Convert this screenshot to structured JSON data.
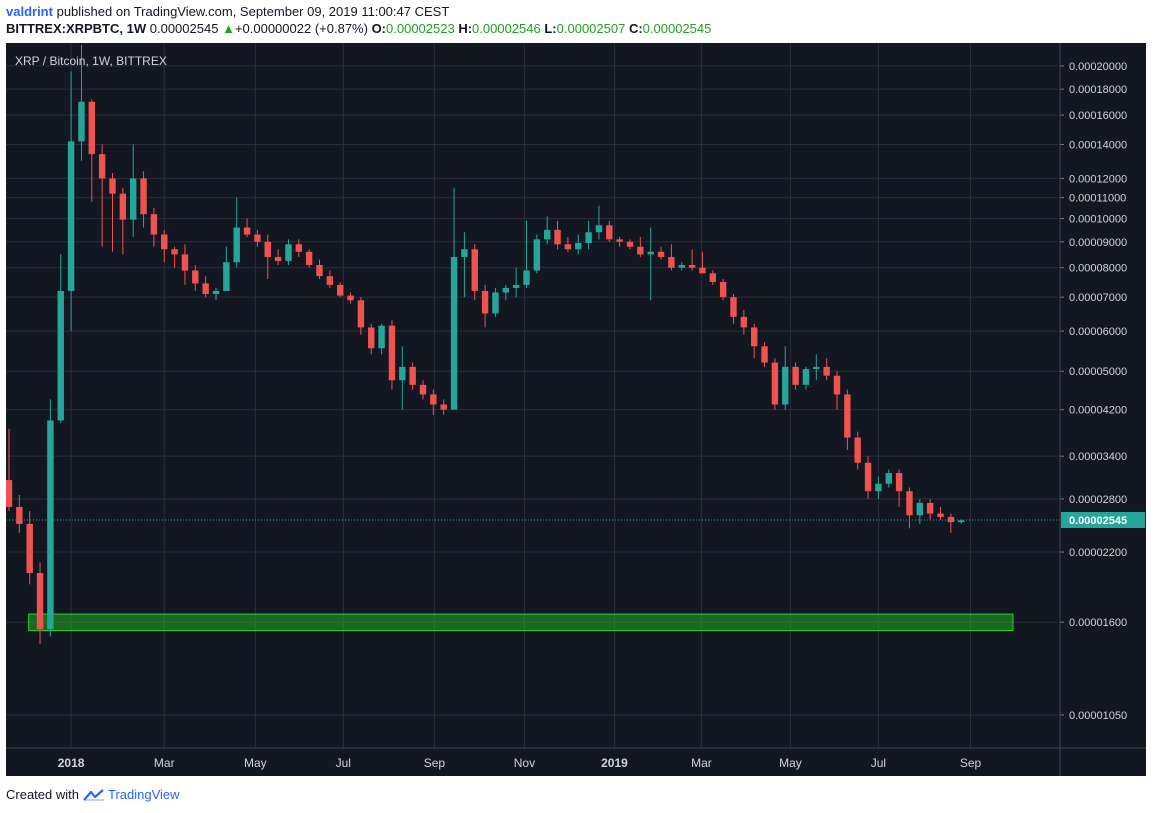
{
  "header": {
    "author": "valdrint",
    "published_text": "published on TradingView.com, September 09, 2019 11:00:47 CEST",
    "symbol": "BITTREX:XRPBTC, 1W",
    "last_price": "0.00002545",
    "change_arrow": "▲",
    "change_text": "+0.00000022 (+0.87%)",
    "o_label": "O:",
    "o_value": "0.00002523",
    "h_label": "H:",
    "h_value": "0.00002546",
    "l_label": "L:",
    "l_value": "0.00002507",
    "c_label": "C:",
    "c_value": "0.00002545"
  },
  "footer": {
    "created_with": "Created with",
    "brand": "TradingView"
  },
  "colors": {
    "background": "#131722",
    "bullish": "#26a69a",
    "bearish": "#ef5350",
    "grid": "#2a2e39",
    "support_zone": "#1fae1f"
  },
  "chart_data": {
    "type": "candlestick",
    "title": "XRP / Bitcoin, 1W, BITTREX",
    "y_scale": "log",
    "ylim": [
      9.5e-06,
      0.000215
    ],
    "y_ticks": [
      "0.00020000",
      "0.00018000",
      "0.00016000",
      "0.00014000",
      "0.00012000",
      "0.00011000",
      "0.00010000",
      "0.00009000",
      "0.00008000",
      "0.00007000",
      "0.00006000",
      "0.00005000",
      "0.00004200",
      "0.00003400",
      "0.00002800",
      "0.00002200",
      "0.00001600",
      "0.00001050"
    ],
    "x_labels": [
      {
        "label": "2018",
        "i": 6.0,
        "bold": true
      },
      {
        "label": "Mar",
        "i": 15.0
      },
      {
        "label": "May",
        "i": 23.8
      },
      {
        "label": "Jul",
        "i": 32.3
      },
      {
        "label": "Sep",
        "i": 41.1
      },
      {
        "label": "Nov",
        "i": 49.8
      },
      {
        "label": "2019",
        "i": 58.5,
        "bold": true
      },
      {
        "label": "Mar",
        "i": 66.9
      },
      {
        "label": "May",
        "i": 75.5
      },
      {
        "label": "Jul",
        "i": 84.0
      },
      {
        "label": "Sep",
        "i": 92.9
      }
    ],
    "vertical_grid_i": [
      6.0,
      15.0,
      23.8,
      32.3,
      41.1,
      49.8,
      58.5,
      66.9,
      75.5,
      84.0,
      92.9
    ],
    "current_price": "0.00002545",
    "support_zone": {
      "low": 1.54e-05,
      "high": 1.66e-05,
      "from_i": 1.9,
      "to_i": 97.0
    },
    "candles": [
      [
        3.05e-05,
        3.85e-05,
        2.65e-05,
        2.7e-05
      ],
      [
        2.7e-05,
        2.85e-05,
        2.4e-05,
        2.5e-05
      ],
      [
        2.5e-05,
        2.65e-05,
        1.9e-05,
        2e-05
      ],
      [
        2e-05,
        2.1e-05,
        1.45e-05,
        1.55e-05
      ],
      [
        1.55e-05,
        4.4e-05,
        1.5e-05,
        4e-05
      ],
      [
        4e-05,
        8.5e-05,
        3.95e-05,
        7.2e-05
      ],
      [
        7.2e-05,
        0.000195,
        6e-05,
        0.000142
      ],
      [
        0.000142,
        0.00022,
        0.00013,
        0.00017
      ],
      [
        0.00017,
        0.000172,
        0.000108,
        0.000134
      ],
      [
        0.000134,
        0.00014,
        8.8e-05,
        0.00012
      ],
      [
        0.00012,
        0.000123,
        8.6e-05,
        0.000112
      ],
      [
        0.000112,
        0.000115,
        8.5e-05,
        9.95e-05
      ],
      [
        9.95e-05,
        0.00014,
        9.2e-05,
        0.00012
      ],
      [
        0.00012,
        0.000124,
        9.6e-05,
        0.000102
      ],
      [
        0.000102,
        0.000105,
        8.8e-05,
        9.3e-05
      ],
      [
        9.3e-05,
        9.5e-05,
        8.2e-05,
        8.7e-05
      ],
      [
        8.7e-05,
        8.8e-05,
        8e-05,
        8.5e-05
      ],
      [
        8.5e-05,
        8.9e-05,
        7.4e-05,
        7.9e-05
      ],
      [
        7.9e-05,
        8.1e-05,
        7.2e-05,
        7.45e-05
      ],
      [
        7.45e-05,
        7.7e-05,
        7e-05,
        7.1e-05
      ],
      [
        7.1e-05,
        7.3e-05,
        6.9e-05,
        7.2e-05
      ],
      [
        7.2e-05,
        8.8e-05,
        7.2e-05,
        8.2e-05
      ],
      [
        8.2e-05,
        0.00011,
        8e-05,
        9.6e-05
      ],
      [
        9.6e-05,
        0.0001,
        9.2e-05,
        9.3e-05
      ],
      [
        9.3e-05,
        9.5e-05,
        8.8e-05,
        9e-05
      ],
      [
        9e-05,
        9.3e-05,
        7.6e-05,
        8.4e-05
      ],
      [
        8.4e-05,
        8.7e-05,
        8.1e-05,
        8.25e-05
      ],
      [
        8.25e-05,
        9.1e-05,
        8.1e-05,
        8.9e-05
      ],
      [
        8.9e-05,
        9.1e-05,
        8.4e-05,
        8.6e-05
      ],
      [
        8.6e-05,
        8.7e-05,
        8e-05,
        8.1e-05
      ],
      [
        8.1e-05,
        8.3e-05,
        7.6e-05,
        7.7e-05
      ],
      [
        7.7e-05,
        7.9e-05,
        7.3e-05,
        7.4e-05
      ],
      [
        7.4e-05,
        7.5e-05,
        7e-05,
        7.05e-05
      ],
      [
        7.05e-05,
        7.15e-05,
        6.8e-05,
        6.9e-05
      ],
      [
        6.9e-05,
        7e-05,
        5.9e-05,
        6.1e-05
      ],
      [
        6.1e-05,
        6.2e-05,
        5.4e-05,
        5.55e-05
      ],
      [
        5.55e-05,
        6.2e-05,
        5.4e-05,
        6.15e-05
      ],
      [
        6.15e-05,
        6.3e-05,
        4.6e-05,
        4.8e-05
      ],
      [
        4.8e-05,
        5.6e-05,
        4.2e-05,
        5.1e-05
      ],
      [
        5.1e-05,
        5.2e-05,
        4.6e-05,
        4.7e-05
      ],
      [
        4.7e-05,
        4.8e-05,
        4.4e-05,
        4.5e-05
      ],
      [
        4.5e-05,
        4.6e-05,
        4.1e-05,
        4.3e-05
      ],
      [
        4.3e-05,
        4.4e-05,
        4.1e-05,
        4.2e-05
      ],
      [
        4.2e-05,
        0.000115,
        4.2e-05,
        8.4e-05
      ],
      [
        8.4e-05,
        9.4e-05,
        7e-05,
        8.7e-05
      ],
      [
        8.7e-05,
        8.9e-05,
        6.9e-05,
        7.2e-05
      ],
      [
        7.2e-05,
        7.4e-05,
        6.1e-05,
        6.5e-05
      ],
      [
        6.5e-05,
        7.3e-05,
        6.4e-05,
        7.15e-05
      ],
      [
        7.15e-05,
        7.4e-05,
        6.9e-05,
        7.3e-05
      ],
      [
        7.3e-05,
        8e-05,
        7e-05,
        7.4e-05
      ],
      [
        7.4e-05,
        9.9e-05,
        7.3e-05,
        7.9e-05
      ],
      [
        7.9e-05,
        9.3e-05,
        7.8e-05,
        9.1e-05
      ],
      [
        9.1e-05,
        0.000101,
        8.9e-05,
        9.5e-05
      ],
      [
        9.5e-05,
        9.9e-05,
        8.7e-05,
        8.9e-05
      ],
      [
        8.9e-05,
        9.2e-05,
        8.6e-05,
        8.7e-05
      ],
      [
        8.7e-05,
        9.3e-05,
        8.5e-05,
        8.95e-05
      ],
      [
        8.95e-05,
        9.9e-05,
        8.7e-05,
        9.4e-05
      ],
      [
        9.4e-05,
        0.000106,
        9.1e-05,
        9.7e-05
      ],
      [
        9.7e-05,
        9.9e-05,
        9e-05,
        9.1e-05
      ],
      [
        9.1e-05,
        9.2e-05,
        8.8e-05,
        9e-05
      ],
      [
        9e-05,
        9.1e-05,
        8.7e-05,
        8.8e-05
      ],
      [
        8.8e-05,
        9.2e-05,
        8.4e-05,
        8.5e-05
      ],
      [
        8.5e-05,
        9.6e-05,
        6.9e-05,
        8.6e-05
      ],
      [
        8.6e-05,
        8.8e-05,
        8.3e-05,
        8.4e-05
      ],
      [
        8.4e-05,
        8.9e-05,
        7.9e-05,
        8e-05
      ],
      [
        8e-05,
        8.2e-05,
        7.9e-05,
        8.1e-05
      ],
      [
        8.1e-05,
        8.7e-05,
        7.9e-05,
        8e-05
      ],
      [
        8e-05,
        8.6e-05,
        7.8e-05,
        7.8e-05
      ],
      [
        7.8e-05,
        7.9e-05,
        7.4e-05,
        7.5e-05
      ],
      [
        7.5e-05,
        7.6e-05,
        6.9e-05,
        7e-05
      ],
      [
        7e-05,
        7.1e-05,
        6.2e-05,
        6.4e-05
      ],
      [
        6.4e-05,
        6.6e-05,
        5.9e-05,
        6.1e-05
      ],
      [
        6.1e-05,
        6.2e-05,
        5.3e-05,
        5.6e-05
      ],
      [
        5.6e-05,
        5.7e-05,
        5.1e-05,
        5.2e-05
      ],
      [
        5.2e-05,
        5.3e-05,
        4.2e-05,
        4.3e-05
      ],
      [
        4.3e-05,
        5.6e-05,
        4.2e-05,
        5.1e-05
      ],
      [
        5.1e-05,
        5.2e-05,
        4.6e-05,
        4.7e-05
      ],
      [
        4.7e-05,
        5.1e-05,
        4.6e-05,
        5.05e-05
      ],
      [
        5.05e-05,
        5.4e-05,
        4.8e-05,
        5.1e-05
      ],
      [
        5.1e-05,
        5.3e-05,
        4.8e-05,
        4.9e-05
      ],
      [
        4.9e-05,
        5e-05,
        4.2e-05,
        4.5e-05
      ],
      [
        4.5e-05,
        4.6e-05,
        3.5e-05,
        3.7e-05
      ],
      [
        3.7e-05,
        3.8e-05,
        3.2e-05,
        3.3e-05
      ],
      [
        3.3e-05,
        3.4e-05,
        2.8e-05,
        2.9e-05
      ],
      [
        2.9e-05,
        3.1e-05,
        2.8e-05,
        3e-05
      ],
      [
        3e-05,
        3.2e-05,
        2.95e-05,
        3.15e-05
      ],
      [
        3.15e-05,
        3.2e-05,
        2.7e-05,
        2.9e-05
      ],
      [
        2.9e-05,
        2.95e-05,
        2.45e-05,
        2.6e-05
      ],
      [
        2.6e-05,
        2.8e-05,
        2.5e-05,
        2.75e-05
      ],
      [
        2.75e-05,
        2.8e-05,
        2.55e-05,
        2.62e-05
      ],
      [
        2.62e-05,
        2.7e-05,
        2.55e-05,
        2.58e-05
      ],
      [
        2.58e-05,
        2.62e-05,
        2.4e-05,
        2.52e-05
      ],
      [
        2.52e-05,
        2.55e-05,
        2.5e-05,
        2.54e-05
      ]
    ]
  }
}
